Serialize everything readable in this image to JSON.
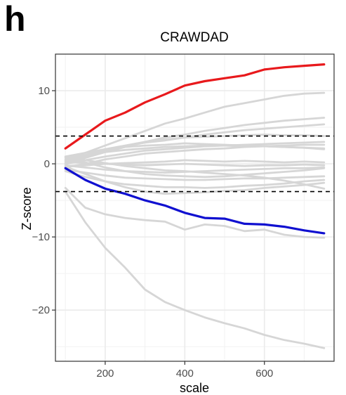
{
  "panel_label": "h",
  "chart_data": {
    "type": "line",
    "title": "CRAWDAD",
    "xlabel": "scale",
    "ylabel": "Z-score",
    "xlim": [
      75,
      775
    ],
    "ylim": [
      -27,
      15
    ],
    "x_ticks": [
      200,
      400,
      600
    ],
    "y_ticks": [
      10,
      0,
      -10,
      -20
    ],
    "x_tick_labels": [
      "200",
      "400",
      "600"
    ],
    "y_tick_labels": [
      "10",
      "0",
      "−10",
      "−20"
    ],
    "grid": true,
    "hlines": [
      3.8,
      -3.8
    ],
    "x": [
      100,
      150,
      200,
      250,
      300,
      350,
      400,
      450,
      500,
      550,
      600,
      650,
      700,
      750
    ],
    "highlight_series": [
      {
        "color": "#e8191c",
        "values": [
          2.1,
          4.0,
          5.9,
          7.0,
          8.4,
          9.5,
          10.7,
          11.3,
          11.7,
          12.1,
          12.9,
          13.2,
          13.4,
          13.6
        ]
      },
      {
        "color": "#1010d0",
        "values": [
          -0.6,
          -2.2,
          -3.4,
          -4.1,
          -5.0,
          -5.7,
          -6.7,
          -7.4,
          -7.5,
          -8.2,
          -8.3,
          -8.6,
          -9.1,
          -9.5
        ]
      }
    ],
    "background_color": "#d6d6d6",
    "background_series": [
      {
        "values": [
          -3.3,
          -6.0,
          -6.9,
          -7.4,
          -7.7,
          -7.9,
          -9.0,
          -8.3,
          -8.5,
          -9.2,
          -9.0,
          -9.7,
          -10.0,
          -10.1
        ]
      },
      {
        "values": [
          -3.8,
          -8.0,
          -11.5,
          -14.2,
          -17.2,
          -18.9,
          -20.0,
          -21.0,
          -21.8,
          -22.5,
          -23.4,
          -24.1,
          -24.6,
          -25.2
        ]
      },
      {
        "values": [
          0.5,
          1.5,
          2.5,
          3.5,
          4.5,
          5.5,
          6.2,
          7.0,
          7.8,
          8.3,
          8.8,
          9.3,
          9.6,
          9.7
        ]
      },
      {
        "values": [
          0.0,
          0.8,
          1.6,
          2.3,
          3.0,
          3.6,
          4.0,
          4.5,
          4.9,
          5.3,
          5.6,
          5.9,
          6.1,
          6.3
        ]
      },
      {
        "values": [
          0.2,
          1.0,
          1.8,
          2.4,
          2.9,
          3.2,
          3.6,
          4.0,
          4.3,
          4.6,
          4.8,
          5.0,
          5.2,
          5.4
        ]
      },
      {
        "values": [
          0.5,
          1.2,
          2.0,
          2.5,
          3.0,
          3.3,
          3.6,
          3.7,
          3.8,
          3.9,
          4.0,
          3.9,
          3.9,
          3.8
        ]
      },
      {
        "values": [
          0.0,
          0.5,
          1.0,
          1.4,
          1.8,
          2.0,
          2.2,
          2.4,
          2.5,
          2.6,
          2.7,
          2.8,
          2.9,
          3.0
        ]
      },
      {
        "values": [
          -0.5,
          0.0,
          0.6,
          1.0,
          1.4,
          1.6,
          1.8,
          2.0,
          2.1,
          2.3,
          2.4,
          2.5,
          2.6,
          2.6
        ]
      },
      {
        "values": [
          0.8,
          1.2,
          1.6,
          1.9,
          2.1,
          2.3,
          2.4,
          2.5,
          2.5,
          2.4,
          2.4,
          2.3,
          2.2,
          2.1
        ]
      },
      {
        "values": [
          1.0,
          1.5,
          2.0,
          2.3,
          2.5,
          2.6,
          2.8,
          2.7,
          2.6,
          2.5,
          2.4,
          2.3,
          2.2,
          2.0
        ]
      },
      {
        "values": [
          -0.3,
          -0.2,
          0.0,
          0.1,
          0.2,
          0.3,
          0.5,
          0.4,
          0.3,
          0.4,
          0.3,
          0.2,
          0.3,
          0.2
        ]
      },
      {
        "values": [
          0.3,
          0.1,
          0.0,
          -0.1,
          -0.2,
          -0.1,
          0.0,
          -0.1,
          -0.2,
          -0.3,
          -0.2,
          -0.2,
          -0.1,
          -0.2
        ]
      },
      {
        "values": [
          -0.2,
          -0.5,
          -0.8,
          -1.0,
          -1.1,
          -1.2,
          -1.1,
          -1.0,
          -0.9,
          -0.8,
          -0.7,
          -0.6,
          -0.6,
          -0.5
        ]
      },
      {
        "values": [
          0.6,
          0.2,
          -0.5,
          -1.0,
          -1.4,
          -1.6,
          -1.7,
          -1.8,
          -1.7,
          -1.5,
          -1.3,
          -1.1,
          -0.9,
          -0.6
        ]
      },
      {
        "values": [
          -0.8,
          -1.2,
          -1.6,
          -1.9,
          -2.0,
          -2.1,
          -2.2,
          -2.2,
          -2.1,
          -2.0,
          -2.0,
          -1.9,
          -1.8,
          -1.7
        ]
      },
      {
        "values": [
          -1.0,
          -1.8,
          -2.4,
          -2.8,
          -3.0,
          -3.2,
          -3.2,
          -3.3,
          -3.2,
          -3.0,
          -2.9,
          -2.7,
          -2.4,
          -2.2
        ]
      },
      {
        "values": [
          -0.4,
          -1.4,
          -2.4,
          -3.2,
          -3.8,
          -4.1,
          -4.0,
          -3.9,
          -3.7,
          -3.6,
          -3.3,
          -3.1,
          -2.9,
          -2.6
        ]
      },
      {
        "values": [
          0.9,
          0.5,
          0.1,
          -0.3,
          -0.6,
          -0.9,
          -1.0,
          -1.2,
          -1.4,
          -1.6,
          -1.9,
          -2.3,
          -2.8,
          -3.4
        ]
      }
    ]
  }
}
